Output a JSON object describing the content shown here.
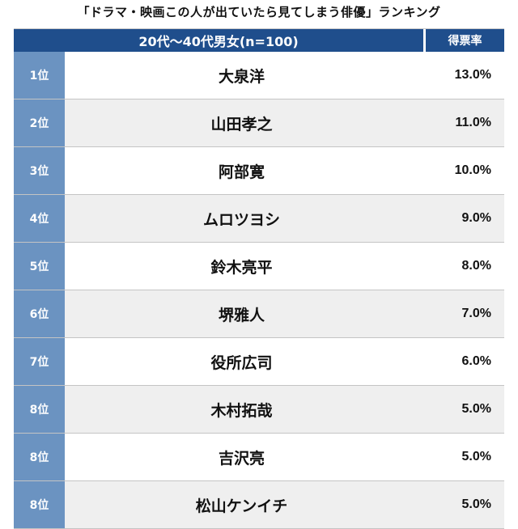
{
  "title": "「ドラマ・映画この人が出ていたら見てしまう俳優」ランキング",
  "header": {
    "group": "20代〜40代男女(n=100)",
    "percent": "得票率"
  },
  "colors": {
    "header_bg": "#1f4e8c",
    "rank_bg": "#6b93c1",
    "alt_row_bg": "#efefef"
  },
  "chart_data": {
    "type": "table",
    "title": "「ドラマ・映画この人が出ていたら見てしまう俳優」ランキング",
    "columns": [
      "20代〜40代男女(n=100)",
      "得票率"
    ],
    "rows": [
      {
        "rank": "1位",
        "name": "大泉洋",
        "percent": "13.0%",
        "value": 13.0
      },
      {
        "rank": "2位",
        "name": "山田孝之",
        "percent": "11.0%",
        "value": 11.0
      },
      {
        "rank": "3位",
        "name": "阿部寛",
        "percent": "10.0%",
        "value": 10.0
      },
      {
        "rank": "4位",
        "name": "ムロツヨシ",
        "percent": "9.0%",
        "value": 9.0
      },
      {
        "rank": "5位",
        "name": "鈴木亮平",
        "percent": "8.0%",
        "value": 8.0
      },
      {
        "rank": "6位",
        "name": "堺雅人",
        "percent": "7.0%",
        "value": 7.0
      },
      {
        "rank": "7位",
        "name": "役所広司",
        "percent": "6.0%",
        "value": 6.0
      },
      {
        "rank": "8位",
        "name": "木村拓哉",
        "percent": "5.0%",
        "value": 5.0
      },
      {
        "rank": "8位",
        "name": "吉沢亮",
        "percent": "5.0%",
        "value": 5.0
      },
      {
        "rank": "8位",
        "name": "松山ケンイチ",
        "percent": "5.0%",
        "value": 5.0
      }
    ]
  }
}
